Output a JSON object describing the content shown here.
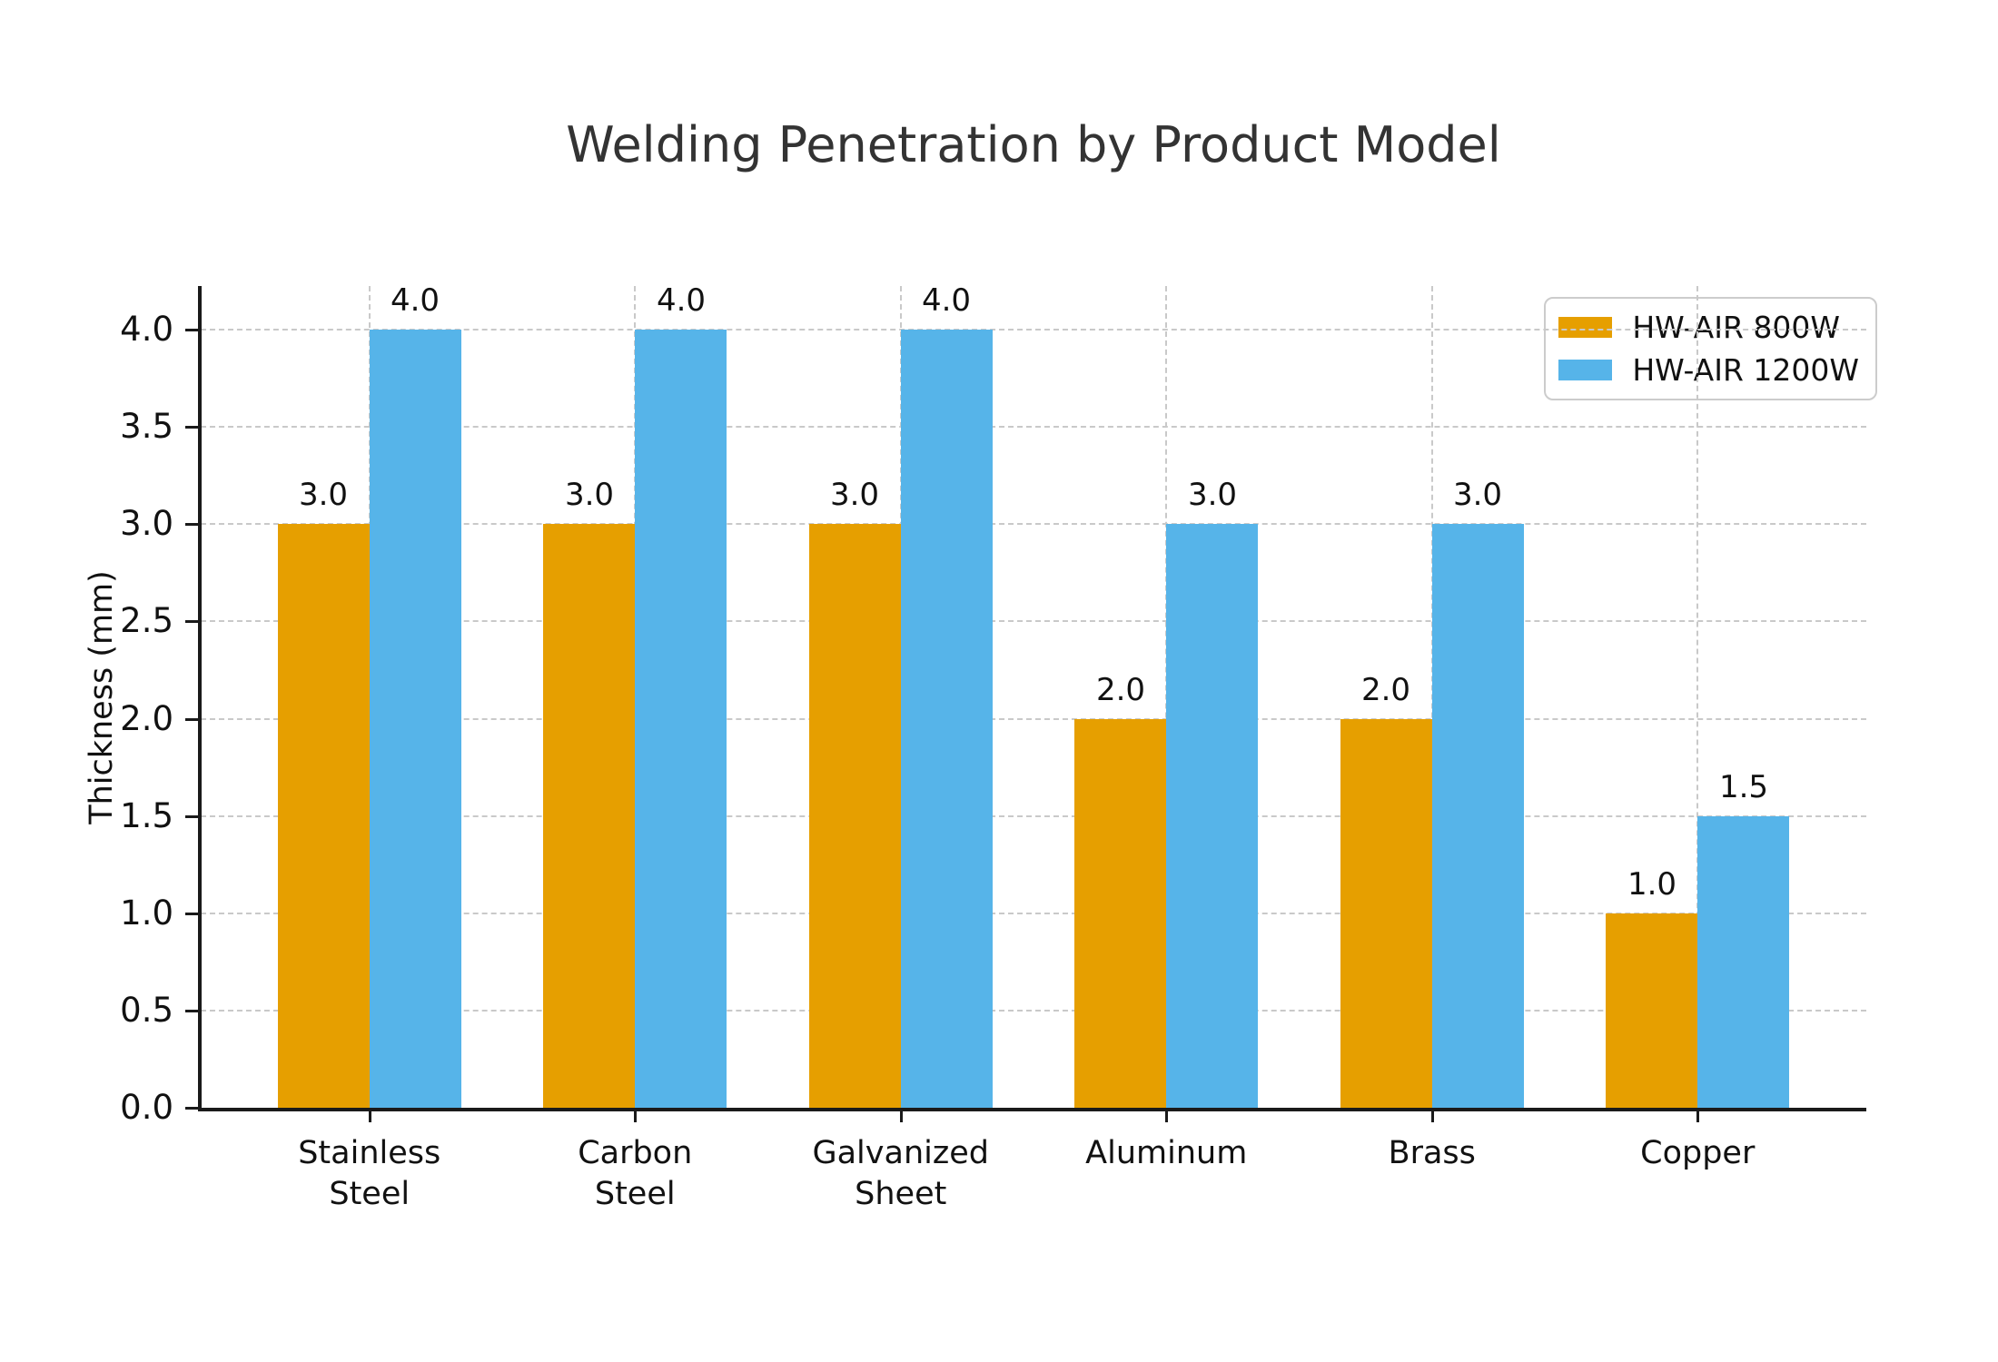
{
  "chart_data": {
    "type": "bar",
    "title": "Welding Penetration by Product Model",
    "ylabel": "Thickness (mm)",
    "xlabel": "",
    "categories": [
      "Stainless\nSteel",
      "Carbon\nSteel",
      "Galvanized\nSheet",
      "Aluminum",
      "Brass",
      "Copper"
    ],
    "series": [
      {
        "name": "HW-AIR 800W",
        "color": "#E69F00",
        "values": [
          3.0,
          3.0,
          3.0,
          2.0,
          2.0,
          1.0
        ]
      },
      {
        "name": "HW-AIR 1200W",
        "color": "#56B4E9",
        "values": [
          4.0,
          4.0,
          4.0,
          3.0,
          3.0,
          1.5
        ]
      }
    ],
    "bar_value_labels": [
      "3.0",
      "4.0",
      "3.0",
      "4.0",
      "3.0",
      "4.0",
      "2.0",
      "3.0",
      "2.0",
      "3.0",
      "1.0",
      "1.5"
    ],
    "yticks": [
      "0.0",
      "0.5",
      "1.0",
      "1.5",
      "2.0",
      "2.5",
      "3.0",
      "3.5",
      "4.0"
    ],
    "ytick_values": [
      0,
      0.5,
      1,
      1.5,
      2,
      2.5,
      3,
      3.5,
      4
    ],
    "ylim": [
      0,
      4.225
    ],
    "grid": {
      "horizontal": true,
      "vertical": true,
      "style": "dashed",
      "color": "#c9c9c9"
    },
    "legend": {
      "position": "upper-right",
      "entries": [
        "HW-AIR 800W",
        "HW-AIR 1200W"
      ]
    },
    "colors": {
      "series_800w": "#E69F00",
      "series_1200w": "#56B4E9",
      "axis": "#1a1a1a",
      "grid": "#c9c9c9",
      "title": "#333333",
      "text": "#111111",
      "background": "#ffffff"
    }
  }
}
